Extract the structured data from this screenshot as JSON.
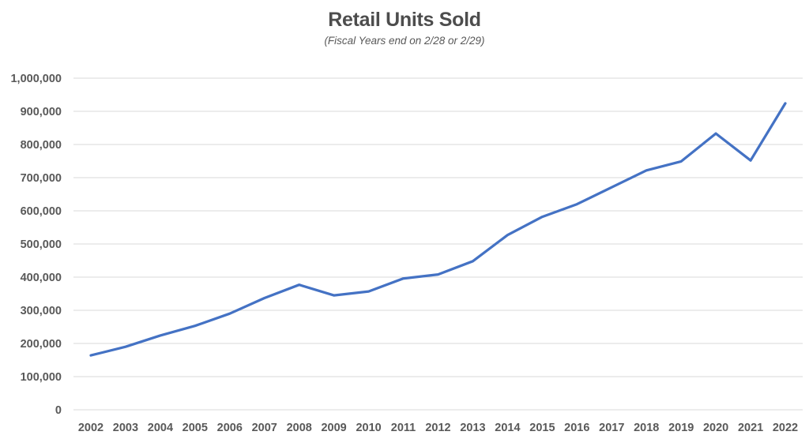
{
  "chart_data": {
    "type": "line",
    "title": "Retail Units Sold",
    "subtitle": "(Fiscal Years end on 2/28 or 2/29)",
    "categories": [
      "2002",
      "2003",
      "2004",
      "2005",
      "2006",
      "2007",
      "2008",
      "2009",
      "2010",
      "2011",
      "2012",
      "2013",
      "2014",
      "2015",
      "2016",
      "2017",
      "2018",
      "2019",
      "2020",
      "2021",
      "2022"
    ],
    "series": [
      {
        "name": "Retail Units Sold",
        "values": [
          164000,
          190000,
          224000,
          253000,
          290000,
          337000,
          377000,
          345000,
          357000,
          396000,
          408000,
          448000,
          527000,
          582000,
          620000,
          671000,
          722000,
          749000,
          833000,
          752000,
          924000
        ]
      }
    ],
    "xlabel": "",
    "ylabel": "",
    "ylim": [
      0,
      1000000
    ],
    "ytick_step": 100000,
    "y_tick_labels": [
      "0",
      "100,000",
      "200,000",
      "300,000",
      "400,000",
      "500,000",
      "600,000",
      "700,000",
      "800,000",
      "900,000",
      "1,000,000"
    ],
    "grid": "horizontal",
    "legend": "none",
    "colors": {
      "line": "#4472C4",
      "gridline": "#D9D9D9",
      "axis_label": "#595959",
      "title": "#4D4D4D",
      "subtitle": "#595959",
      "background": "#FFFFFF"
    }
  }
}
